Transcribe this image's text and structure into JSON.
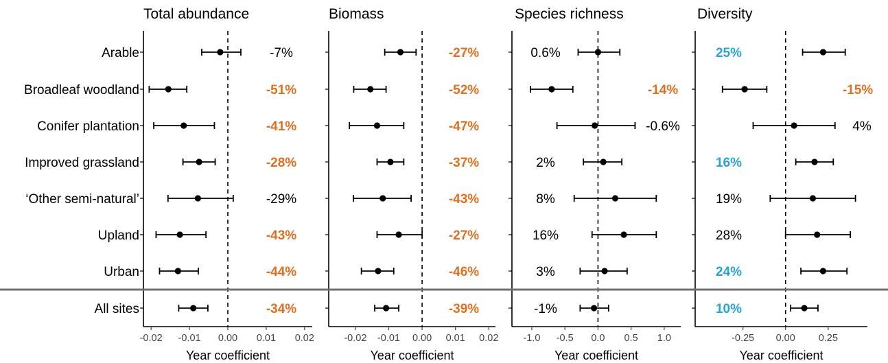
{
  "chart_data": {
    "type": "scatter",
    "style": "forest-plot with horizontal error bars",
    "colors": {
      "negative": "#E07020",
      "positive": "#29A3D6",
      "neutral": "#000000"
    },
    "rows": [
      "Arable",
      "Broadleaf woodland",
      "Conifer plantation",
      "Improved grassland",
      "‘Other semi-natural’",
      "Upland",
      "Urban",
      "All sites"
    ],
    "xlabel": "Year coefficient",
    "panels": [
      {
        "title": "Total abundance",
        "xlim": [
          -0.022,
          0.022
        ],
        "ticks": [
          -0.02,
          -0.01,
          0.0,
          0.01,
          0.02
        ],
        "tick_labels": [
          "-0.02",
          "-0.01",
          "0.00",
          "0.01",
          "0.02"
        ],
        "estimate": [
          -0.002,
          -0.0155,
          -0.0115,
          -0.0075,
          -0.0078,
          -0.0125,
          -0.013,
          -0.009
        ],
        "lower": [
          -0.0068,
          -0.0205,
          -0.0193,
          -0.0117,
          -0.0156,
          -0.0187,
          -0.0178,
          -0.0128
        ],
        "upper": [
          0.0034,
          -0.0107,
          -0.0035,
          -0.0033,
          0.0014,
          -0.0057,
          -0.0077,
          -0.0052
        ],
        "labels": [
          "-7%",
          "-51%",
          "-41%",
          "-28%",
          "-29%",
          "-43%",
          "-44%",
          "-34%"
        ],
        "label_colors": [
          "neutral",
          "negative",
          "negative",
          "negative",
          "neutral",
          "negative",
          "negative",
          "negative"
        ]
      },
      {
        "title": "Biomass",
        "xlim": [
          -0.028,
          0.022
        ],
        "ticks": [
          -0.02,
          -0.01,
          0.0,
          0.01,
          0.02
        ],
        "tick_labels": [
          "-0.02",
          "-0.01",
          "0.00",
          "0.01",
          "0.02"
        ],
        "estimate": [
          -0.0065,
          -0.0155,
          -0.0135,
          -0.0095,
          -0.0118,
          -0.007,
          -0.0132,
          -0.0108
        ],
        "lower": [
          -0.0112,
          -0.0205,
          -0.0218,
          -0.0135,
          -0.0206,
          -0.0135,
          -0.0182,
          -0.0142
        ],
        "upper": [
          -0.0018,
          -0.0108,
          -0.0055,
          -0.0055,
          -0.0033,
          0.0,
          -0.0085,
          -0.007
        ],
        "labels": [
          "-27%",
          "-52%",
          "-47%",
          "-37%",
          "-43%",
          "-27%",
          "-46%",
          "-39%"
        ],
        "label_colors": [
          "negative",
          "negative",
          "negative",
          "negative",
          "negative",
          "negative",
          "negative",
          "negative"
        ]
      },
      {
        "title": "Species richness",
        "xlim": [
          -1.3,
          1.25
        ],
        "ticks": [
          -1.0,
          -0.5,
          0.0,
          0.5,
          1.0
        ],
        "tick_labels": [
          "-1.0",
          "-0.5",
          "0.0",
          "0.5",
          "1.0"
        ],
        "estimate": [
          0.0,
          -0.7,
          -0.05,
          0.08,
          0.26,
          0.39,
          0.1,
          -0.06
        ],
        "lower": [
          -0.3,
          -1.02,
          -0.62,
          -0.22,
          -0.36,
          -0.09,
          -0.27,
          -0.27
        ],
        "upper": [
          0.33,
          -0.38,
          0.56,
          0.36,
          0.88,
          0.88,
          0.44,
          0.16
        ],
        "labels": [
          "0.6%",
          "-14%",
          "-0.6%",
          "2%",
          "8%",
          "16%",
          "3%",
          "-1%"
        ],
        "label_colors": [
          "neutral",
          "negative",
          "neutral",
          "neutral",
          "neutral",
          "neutral",
          "neutral",
          "neutral"
        ]
      },
      {
        "title": "Diversity",
        "xlim": [
          -0.53,
          0.48
        ],
        "ticks": [
          -0.25,
          0.0,
          0.25
        ],
        "tick_labels": [
          "-0.25",
          "0.00",
          "0.25"
        ],
        "estimate": [
          0.22,
          -0.24,
          0.05,
          0.17,
          0.16,
          0.185,
          0.22,
          0.11
        ],
        "lower": [
          0.1,
          -0.37,
          -0.19,
          0.06,
          -0.09,
          0.0,
          0.09,
          0.03
        ],
        "upper": [
          0.35,
          -0.11,
          0.29,
          0.28,
          0.41,
          0.38,
          0.36,
          0.19
        ],
        "labels": [
          "25%",
          "-15%",
          "4%",
          "16%",
          "19%",
          "28%",
          "24%",
          "10%"
        ],
        "label_colors": [
          "positive",
          "negative",
          "neutral",
          "positive",
          "neutral",
          "neutral",
          "positive",
          "positive"
        ]
      }
    ]
  }
}
